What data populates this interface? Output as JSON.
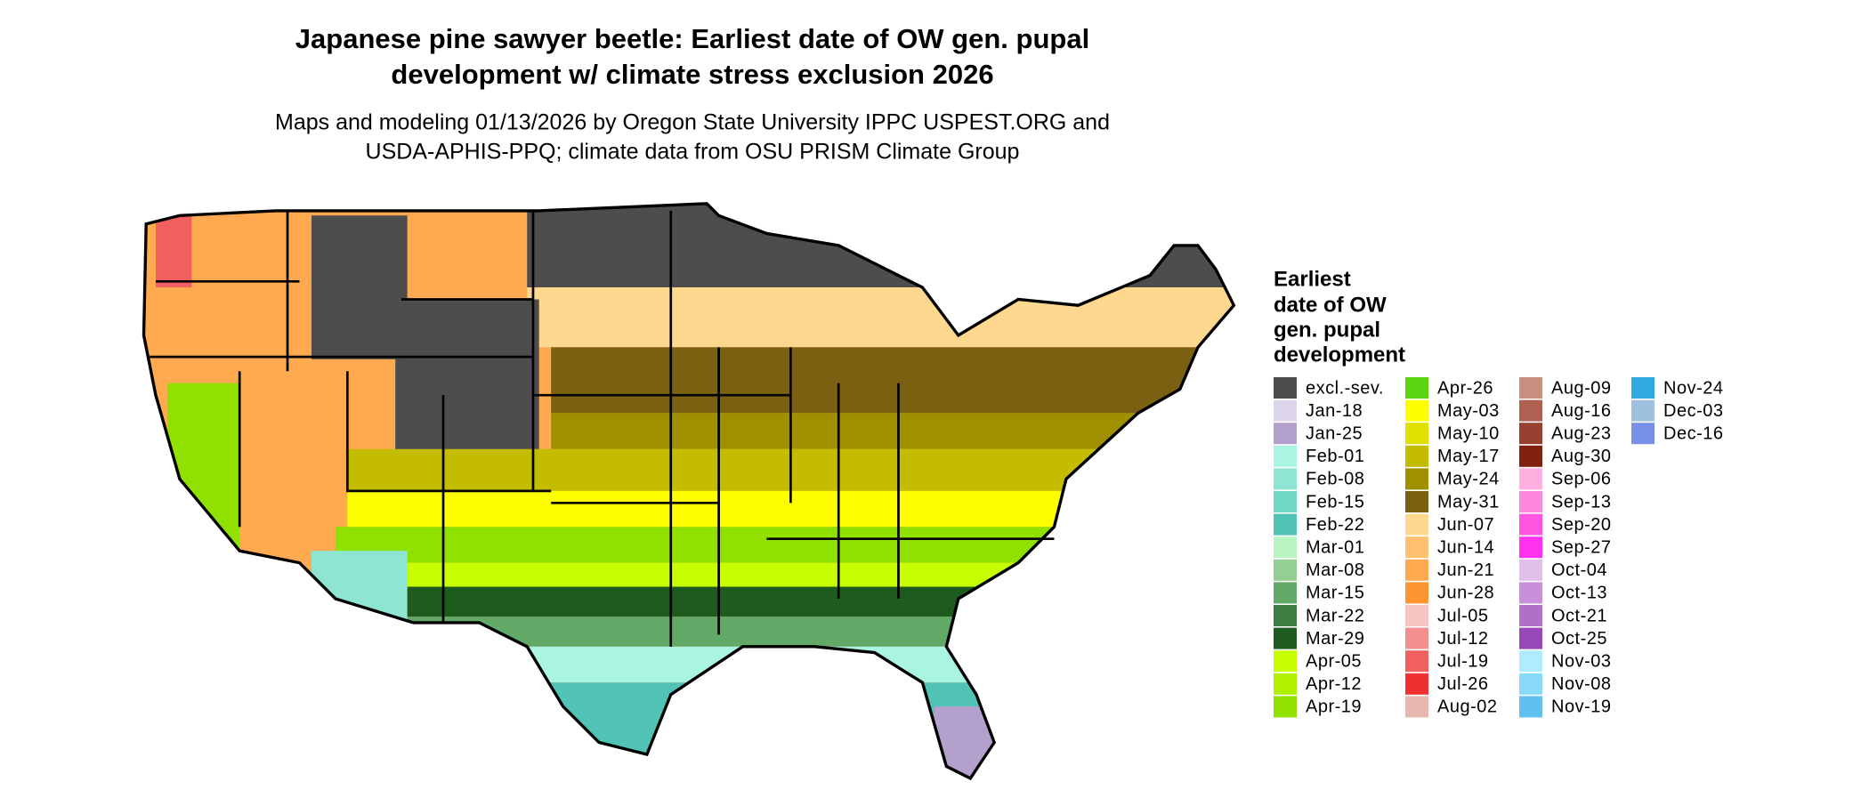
{
  "title": [
    "Japanese pine sawyer beetle: Earliest date of OW gen. pupal",
    "development w/ climate stress exclusion 2026"
  ],
  "subtitle": [
    "Maps and modeling 01/13/2026 by Oregon State University IPPC USPEST.ORG and",
    "USDA-APHIS-PPQ; climate data from OSU PRISM Climate Group"
  ],
  "legend": {
    "title": [
      "Earliest",
      "date of OW",
      "gen. pupal",
      "development"
    ],
    "items": [
      {
        "label": "excl.-sev.",
        "color": "#4d4d4d"
      },
      {
        "label": "Jan-18",
        "color": "#dcd4ea"
      },
      {
        "label": "Jan-25",
        "color": "#b4a0cc"
      },
      {
        "label": "Feb-01",
        "color": "#aaf5e1"
      },
      {
        "label": "Feb-08",
        "color": "#8ee6d2"
      },
      {
        "label": "Feb-15",
        "color": "#6fd9c5"
      },
      {
        "label": "Feb-22",
        "color": "#50c3b4"
      },
      {
        "label": "Mar-01",
        "color": "#b9f5c0"
      },
      {
        "label": "Mar-08",
        "color": "#93cf92"
      },
      {
        "label": "Mar-15",
        "color": "#62a866"
      },
      {
        "label": "Mar-22",
        "color": "#3d7d40"
      },
      {
        "label": "Mar-29",
        "color": "#1e5b1e"
      },
      {
        "label": "Apr-05",
        "color": "#c8ff00"
      },
      {
        "label": "Apr-12",
        "color": "#b0f000"
      },
      {
        "label": "Apr-19",
        "color": "#90e000"
      },
      {
        "label": "Apr-26",
        "color": "#5cd610"
      },
      {
        "label": "May-03",
        "color": "#ffff00"
      },
      {
        "label": "May-10",
        "color": "#e0e000"
      },
      {
        "label": "May-17",
        "color": "#c4bc00"
      },
      {
        "label": "May-24",
        "color": "#a09000"
      },
      {
        "label": "May-31",
        "color": "#7a6010"
      },
      {
        "label": "Jun-07",
        "color": "#ffd890"
      },
      {
        "label": "Jun-14",
        "color": "#ffc070"
      },
      {
        "label": "Jun-21",
        "color": "#ffaa50"
      },
      {
        "label": "Jun-28",
        "color": "#ff9530"
      },
      {
        "label": "Jul-05",
        "color": "#f8c4c4"
      },
      {
        "label": "Jul-12",
        "color": "#f49090"
      },
      {
        "label": "Jul-19",
        "color": "#f06060"
      },
      {
        "label": "Jul-26",
        "color": "#f03030"
      },
      {
        "label": "Aug-02",
        "color": "#e8b8b0"
      },
      {
        "label": "Aug-09",
        "color": "#c89080"
      },
      {
        "label": "Aug-16",
        "color": "#b06050"
      },
      {
        "label": "Aug-23",
        "color": "#984030"
      },
      {
        "label": "Aug-30",
        "color": "#802010"
      },
      {
        "label": "Sep-06",
        "color": "#ffb0e0"
      },
      {
        "label": "Sep-13",
        "color": "#ff88dd"
      },
      {
        "label": "Sep-20",
        "color": "#ff55e0"
      },
      {
        "label": "Sep-27",
        "color": "#ff30f0"
      },
      {
        "label": "Oct-04",
        "color": "#e0c0e8"
      },
      {
        "label": "Oct-13",
        "color": "#c890d8"
      },
      {
        "label": "Oct-21",
        "color": "#b070c8"
      },
      {
        "label": "Oct-25",
        "color": "#9848b8"
      },
      {
        "label": "Nov-03",
        "color": "#b0ecff"
      },
      {
        "label": "Nov-08",
        "color": "#88daf8"
      },
      {
        "label": "Nov-19",
        "color": "#60c0f0"
      },
      {
        "label": "Nov-24",
        "color": "#30a8e0"
      },
      {
        "label": "Dec-03",
        "color": "#a0c0e0"
      },
      {
        "label": "Dec-16",
        "color": "#7890e8"
      }
    ]
  }
}
